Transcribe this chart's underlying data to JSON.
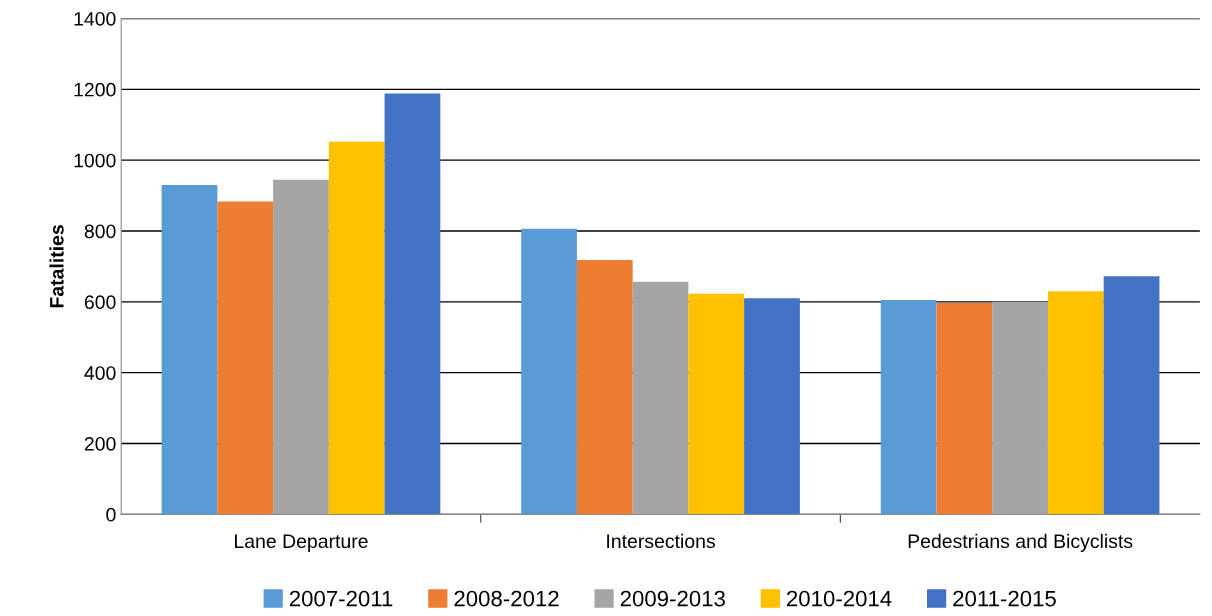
{
  "chart_data": {
    "type": "bar",
    "ylabel": "Fatalities",
    "categories": [
      "Lane Departure",
      "Intersections",
      "Pedestrians and Bicyclists"
    ],
    "series": [
      {
        "name": "2007-2011",
        "color": "#5b9bd5",
        "values": [
          930,
          806,
          605
        ]
      },
      {
        "name": "2008-2012",
        "color": "#ed7d31",
        "values": [
          883,
          718,
          597
        ]
      },
      {
        "name": "2009-2013",
        "color": "#a5a5a5",
        "values": [
          945,
          657,
          600
        ]
      },
      {
        "name": "2010-2014",
        "color": "#ffc000",
        "values": [
          1052,
          623,
          630
        ]
      },
      {
        "name": "2011-2015",
        "color": "#4472c4",
        "values": [
          1188,
          610,
          672
        ]
      }
    ],
    "ylim": [
      0,
      1400
    ],
    "yticks": [
      0,
      200,
      400,
      600,
      800,
      1000,
      1200,
      1400
    ],
    "grid": "y",
    "legend": "bottom"
  }
}
